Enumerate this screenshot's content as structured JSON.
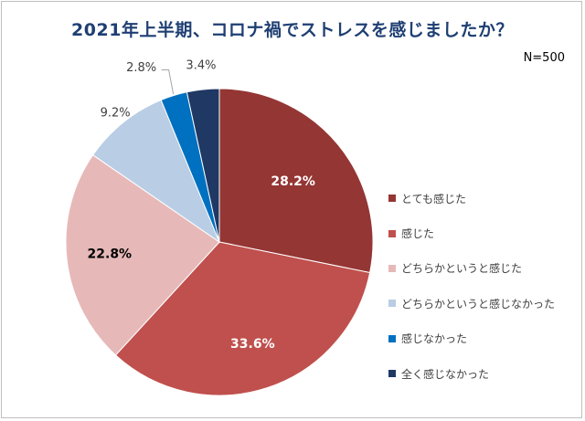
{
  "chart_data": {
    "type": "pie",
    "title": "2021年上半期、コロナ禍でストレスを感じましたか？",
    "note": "N=500",
    "categories": [
      "とても感じた",
      "感じた",
      "どちらかというと感じた",
      "どちらかというと感じなかった",
      "感じなかった",
      "全く感じなかった"
    ],
    "values": [
      28.2,
      33.6,
      22.8,
      9.2,
      2.8,
      3.4
    ],
    "value_labels": [
      "28.2%",
      "33.6%",
      "22.8%",
      "9.2%",
      "2.8%",
      "3.4%"
    ],
    "colors": [
      "#943634",
      "#c0504d",
      "#e6b9b8",
      "#b9cde5",
      "#0070c0",
      "#1f3864"
    ],
    "label_colors": [
      "#ffffff",
      "#ffffff",
      "#000000",
      "#404040",
      "#404040",
      "#404040"
    ],
    "start_angle_deg": 0,
    "direction": "clockwise",
    "legend_position": "right"
  }
}
